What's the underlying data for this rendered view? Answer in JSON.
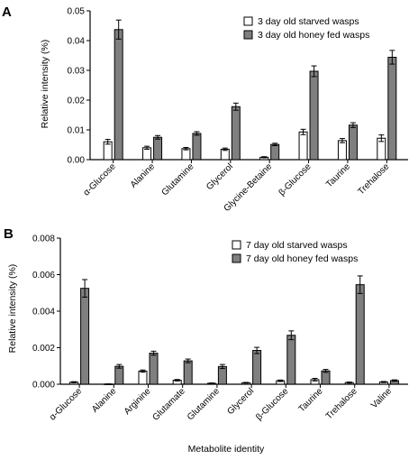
{
  "chart_data": [
    {
      "type": "bar",
      "panel_label": "A",
      "categories": [
        "α-Glucose",
        "Alanine",
        "Glutamine",
        "Glycerol",
        "Glycine-Betaine",
        "β-Glucose",
        "Taurine",
        "Trehalose"
      ],
      "series": [
        {
          "name": "3 day old starved wasps",
          "color": "#ffffff",
          "values": [
            0.006,
            0.004,
            0.0037,
            0.0035,
            0.0008,
            0.0093,
            0.0064,
            0.0072
          ],
          "errors": [
            0.0008,
            0.0005,
            0.0004,
            0.0004,
            0.0002,
            0.0009,
            0.0007,
            0.0011
          ]
        },
        {
          "name": "3 day old honey fed wasps",
          "color": "#7f7f7f",
          "values": [
            0.0437,
            0.0075,
            0.0088,
            0.0178,
            0.0051,
            0.0297,
            0.0116,
            0.0344
          ],
          "errors": [
            0.0032,
            0.0006,
            0.0006,
            0.0012,
            0.0004,
            0.0018,
            0.0008,
            0.0023
          ]
        }
      ],
      "yticks": [
        "0.00",
        "0.01",
        "0.02",
        "0.03",
        "0.04",
        "0.05"
      ],
      "ylim": [
        0,
        0.05
      ],
      "ylabel": "Relative intensity (%)",
      "xlabel": "",
      "legend_position": "top-right"
    },
    {
      "type": "bar",
      "panel_label": "B",
      "categories": [
        "α-Glucose",
        "Alanine",
        "Arginine",
        "Glutamate",
        "Glutamine",
        "Glycerol",
        "β-Glucose",
        "Taurine",
        "Trehalose",
        "Valine"
      ],
      "series": [
        {
          "name": "7 day old starved wasps",
          "color": "#ffffff",
          "values": [
            0.00011,
            1e-05,
            0.00072,
            0.00022,
            5e-05,
            8e-05,
            0.00019,
            0.00025,
            9e-05,
            0.00012
          ],
          "errors": [
            3e-05,
            1e-05,
            6e-05,
            4e-05,
            2e-05,
            2e-05,
            4e-05,
            7e-05,
            3e-05,
            3e-05
          ]
        },
        {
          "name": "7 day old honey fed wasps",
          "color": "#7f7f7f",
          "values": [
            0.00525,
            0.00098,
            0.0017,
            0.00128,
            0.00097,
            0.00185,
            0.00268,
            0.00073,
            0.00545,
            0.0002
          ],
          "errors": [
            0.00048,
            0.0001,
            0.00011,
            0.0001,
            0.00011,
            0.00017,
            0.00024,
            8e-05,
            0.00048,
            4e-05
          ]
        }
      ],
      "yticks": [
        "0.000",
        "0.002",
        "0.004",
        "0.006",
        "0.008"
      ],
      "ylim": [
        0,
        0.008
      ],
      "ylabel": "Relative intensity (%)",
      "xlabel": "Metabolite identity",
      "legend_position": "top-right"
    }
  ]
}
